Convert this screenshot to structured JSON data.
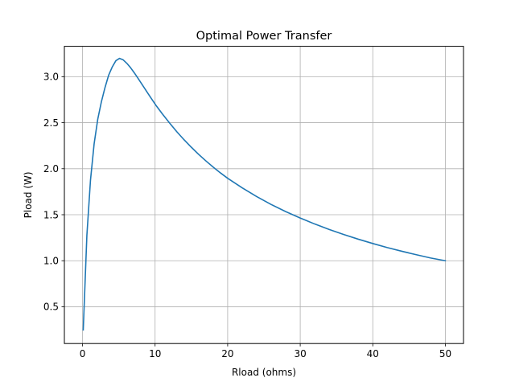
{
  "chart_data": {
    "type": "line",
    "title": "Optimal Power Transfer",
    "xlabel": "Rload (ohms)",
    "ylabel": "Pload (W)",
    "xlim": [
      -2.5,
      52.5
    ],
    "ylim": [
      0.1,
      3.33
    ],
    "grid": true,
    "xticks": [
      0,
      10,
      20,
      30,
      40,
      50
    ],
    "xtick_labels": [
      "0",
      "10",
      "20",
      "30",
      "40",
      "50"
    ],
    "yticks": [
      0.5,
      1.0,
      1.5,
      2.0,
      2.5,
      3.0
    ],
    "ytick_labels": [
      "0.5",
      "1.0",
      "1.5",
      "2.0",
      "2.5",
      "3.0"
    ],
    "series": [
      {
        "color": "#1f77b4",
        "x": [
          0.1,
          0.6,
          1.1,
          1.6,
          2.1,
          2.6,
          3.1,
          3.6,
          4.1,
          4.6,
          5.1,
          5.6,
          6.1,
          6.6,
          7.1,
          7.6,
          8.1,
          8.6,
          9.1,
          9.6,
          10.1,
          11,
          12,
          13,
          14,
          15,
          16,
          17,
          18,
          19,
          20,
          22,
          24,
          26,
          28,
          30,
          32,
          34,
          36,
          38,
          40,
          42,
          44,
          46,
          48,
          50
        ],
        "y": [
          0.248,
          1.274,
          1.878,
          2.27,
          2.538,
          2.727,
          2.882,
          3.016,
          3.106,
          3.174,
          3.199,
          3.183,
          3.146,
          3.1,
          3.046,
          2.988,
          2.928,
          2.868,
          2.808,
          2.749,
          2.691,
          2.596,
          2.496,
          2.401,
          2.314,
          2.233,
          2.156,
          2.085,
          2.018,
          1.955,
          1.896,
          1.792,
          1.697,
          1.611,
          1.534,
          1.464,
          1.399,
          1.339,
          1.285,
          1.234,
          1.187,
          1.143,
          1.103,
          1.065,
          1.029,
          1.0
        ]
      }
    ]
  }
}
